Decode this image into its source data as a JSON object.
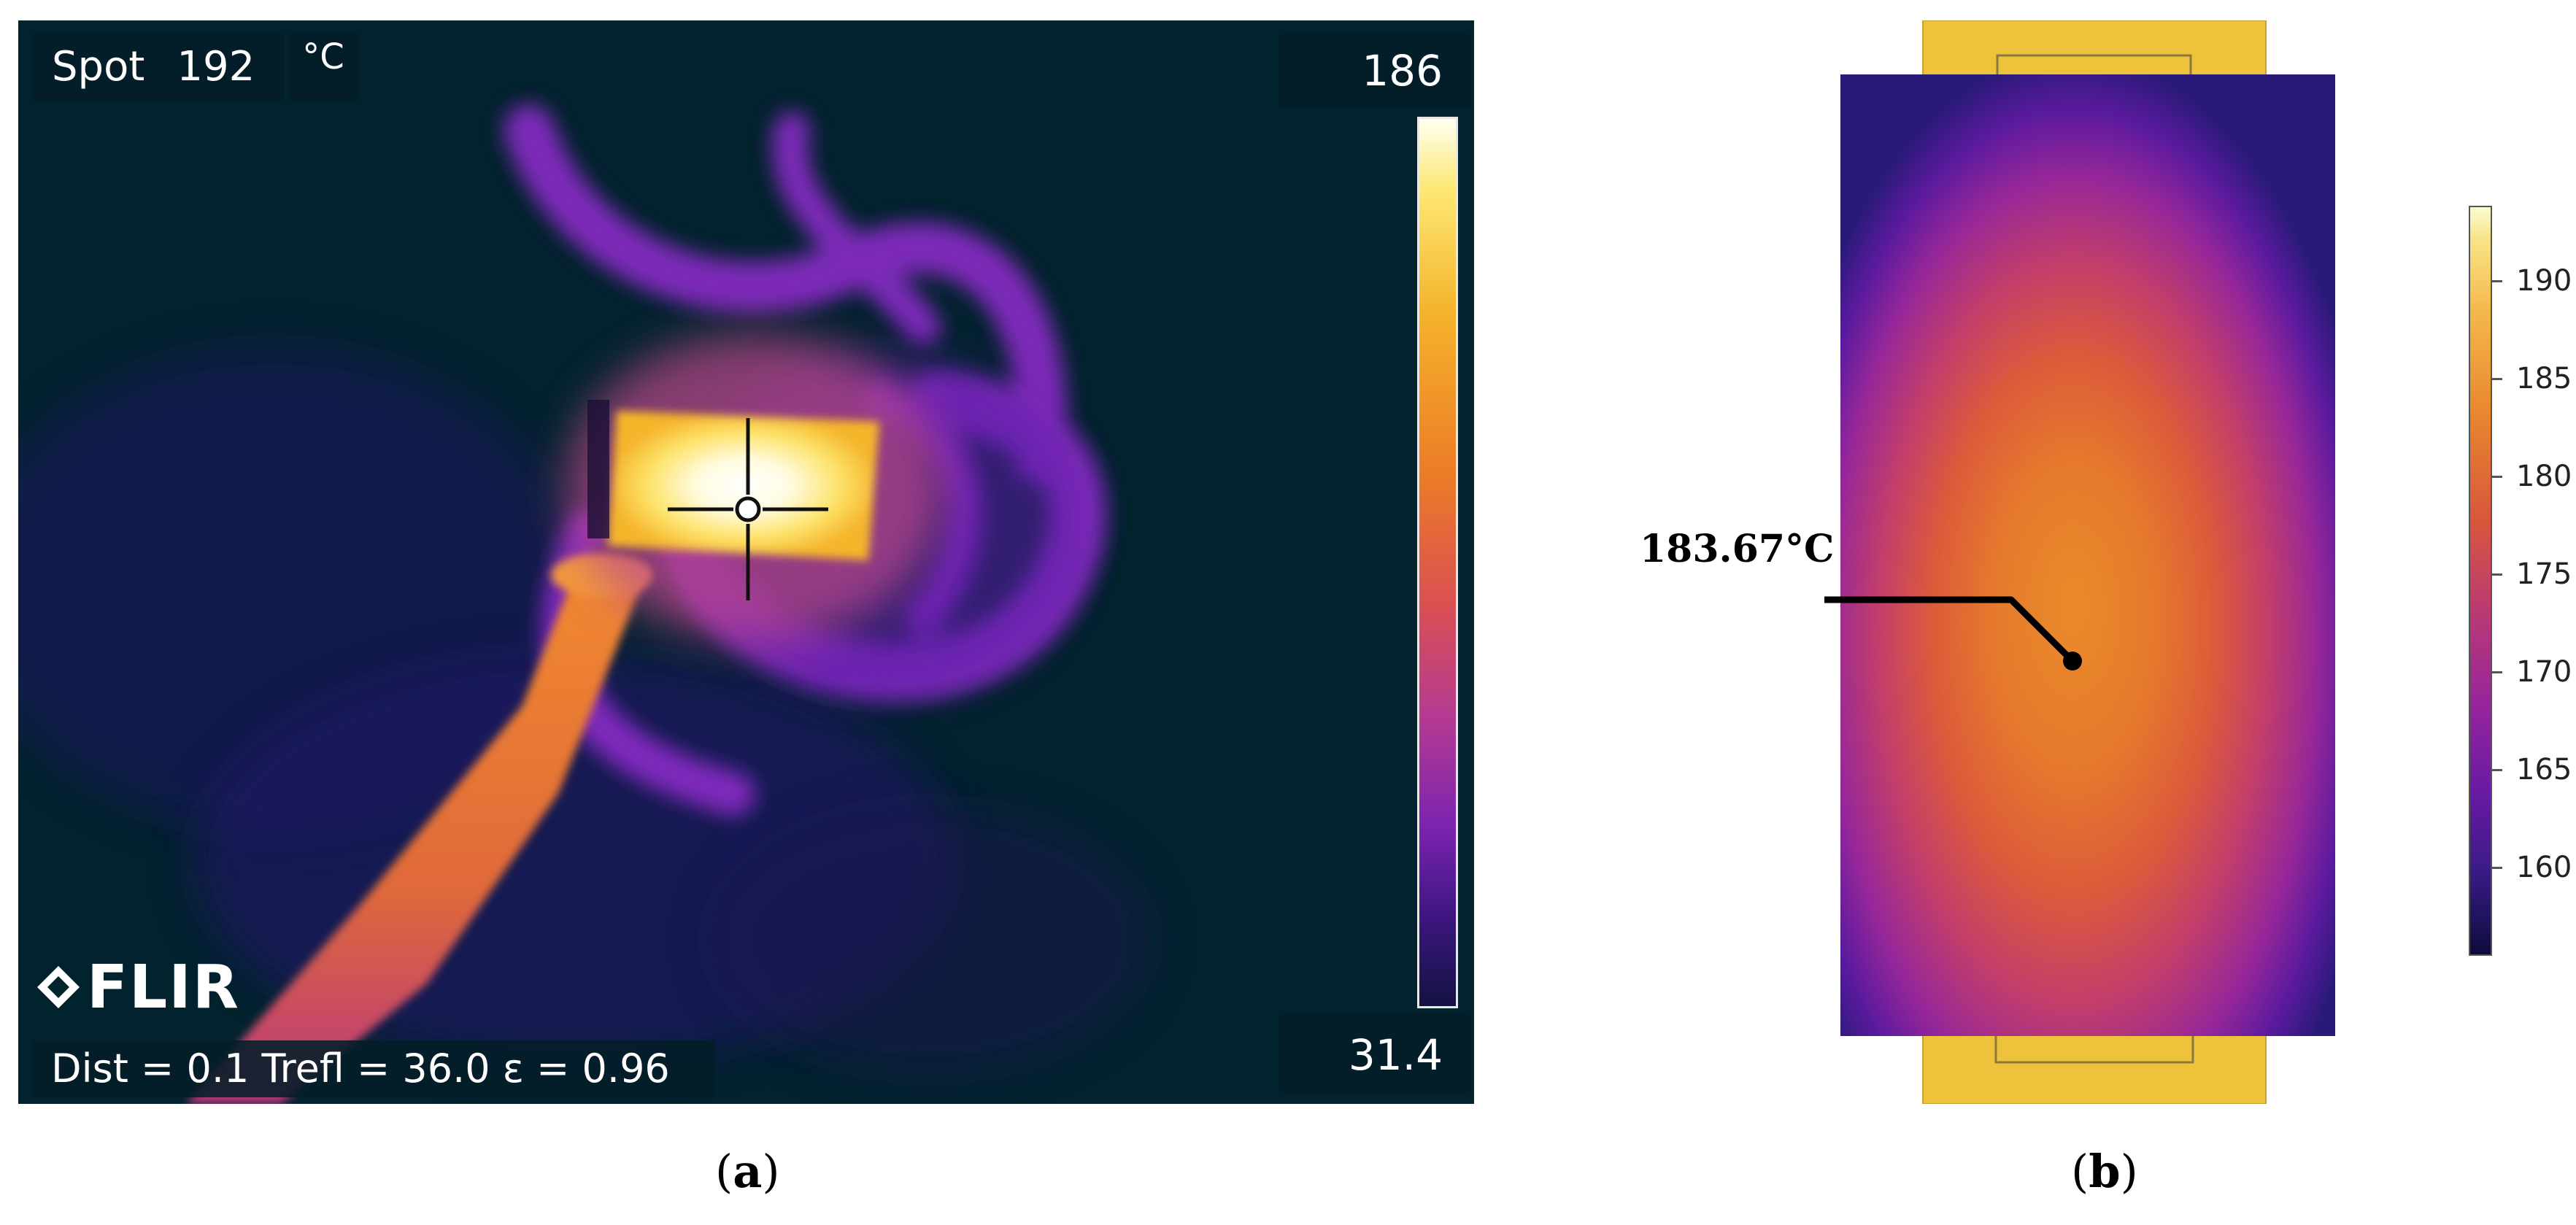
{
  "panel_a": {
    "spot_label": "Spot",
    "spot_value": "192",
    "unit": "°C",
    "scale_max": "186",
    "scale_min": "31.4",
    "params": "Dist = 0.1  Trefl = 36.0  ε = 0.96",
    "brand": "FLIR"
  },
  "panel_b": {
    "probe_value": "183.67°C",
    "colorbar_ticks": [
      "190",
      "185",
      "180",
      "175",
      "170",
      "165",
      "160"
    ]
  },
  "captions": {
    "a_open": "(",
    "a_letter": "a",
    "a_close": ")",
    "b_open": "(",
    "b_letter": "b",
    "b_close": ")"
  }
}
